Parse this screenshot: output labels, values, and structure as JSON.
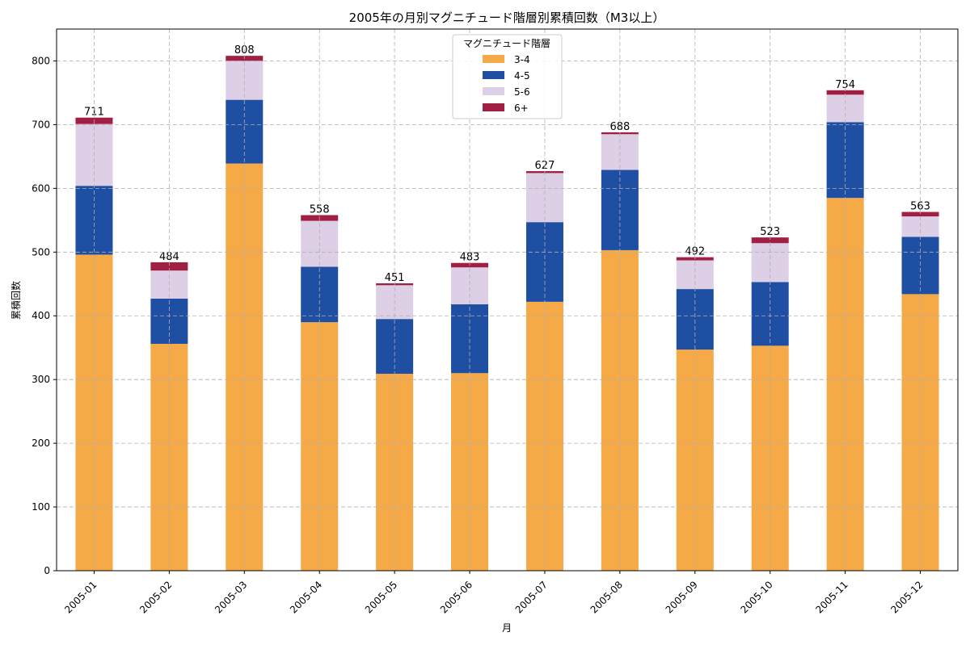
{
  "chart_data": {
    "type": "bar",
    "stacked": true,
    "title": "2005年の月別マグニチュード階層別累積回数（M3以上）",
    "xlabel": "月",
    "ylabel": "累積回数",
    "ylim": [
      0,
      850
    ],
    "yticks": [
      0,
      100,
      200,
      300,
      400,
      500,
      600,
      700,
      800
    ],
    "grid": true,
    "legend": {
      "title": "マグニチュード階層",
      "placement": "top-center"
    },
    "categories": [
      "2005-01",
      "2005-02",
      "2005-03",
      "2005-04",
      "2005-05",
      "2005-06",
      "2005-07",
      "2005-08",
      "2005-09",
      "2005-10",
      "2005-11",
      "2005-12"
    ],
    "series": [
      {
        "name": "3-4",
        "color": "#f5a947",
        "values": [
          496,
          356,
          639,
          390,
          309,
          310,
          422,
          503,
          347,
          353,
          585,
          434
        ]
      },
      {
        "name": "4-5",
        "color": "#1f4fa3",
        "values": [
          108,
          71,
          100,
          87,
          86,
          108,
          125,
          126,
          95,
          100,
          119,
          90
        ]
      },
      {
        "name": "5-6",
        "color": "#dccfe6",
        "values": [
          97,
          44,
          61,
          72,
          53,
          58,
          77,
          56,
          45,
          61,
          43,
          32
        ]
      },
      {
        "name": "6+",
        "color": "#a11f42",
        "values": [
          10,
          13,
          8,
          9,
          3,
          7,
          3,
          3,
          5,
          9,
          7,
          7
        ]
      }
    ],
    "totals": [
      711,
      484,
      808,
      558,
      451,
      483,
      627,
      688,
      492,
      523,
      754,
      563
    ]
  }
}
